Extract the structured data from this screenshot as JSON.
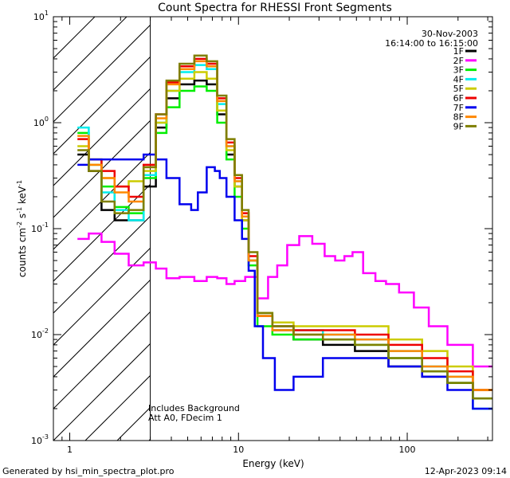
{
  "chart_data": {
    "type": "line",
    "title": "Count Spectra for RHESSI Front Segments",
    "xlabel": "Energy (keV)",
    "ylabel": "counts cm⁻² s⁻¹ keV⁻¹",
    "xscale": "log",
    "yscale": "log",
    "xlim": [
      0.8,
      320
    ],
    "ylim": [
      0.001,
      10
    ],
    "x_ticks": [
      {
        "value": 1,
        "label": "1"
      },
      {
        "value": 10,
        "label": "10"
      },
      {
        "value": 100,
        "label": "100"
      }
    ],
    "y_ticks": [
      {
        "value": 0.001,
        "base": "10",
        "exp": "-3"
      },
      {
        "value": 0.01,
        "base": "10",
        "exp": "-2"
      },
      {
        "value": 0.1,
        "base": "10",
        "exp": "-1"
      },
      {
        "value": 1,
        "base": "10",
        "exp": "0"
      },
      {
        "value": 10,
        "base": "10",
        "exp": "1"
      }
    ],
    "date": "30-Nov-2003",
    "time_range": "16:14:00 to 16:15:00",
    "hatched_region_max_kev": 3,
    "annotations": [
      "Includes Background",
      "Att A0, FDecim 1"
    ],
    "series": [
      {
        "name": "1F",
        "color": "#000000",
        "points": [
          [
            1.2,
            0.5
          ],
          [
            1.4,
            0.35
          ],
          [
            1.7,
            0.15
          ],
          [
            2.0,
            0.12
          ],
          [
            2.5,
            0.12
          ],
          [
            3,
            0.25
          ],
          [
            3.5,
            0.9
          ],
          [
            4,
            1.7
          ],
          [
            5,
            2.3
          ],
          [
            6,
            2.5
          ],
          [
            7,
            2.3
          ],
          [
            8,
            1.2
          ],
          [
            9,
            0.5
          ],
          [
            10,
            0.25
          ],
          [
            11,
            0.12
          ],
          [
            12,
            0.05
          ],
          [
            14,
            0.015
          ],
          [
            18,
            0.011
          ],
          [
            25,
            0.009
          ],
          [
            40,
            0.008
          ],
          [
            60,
            0.007
          ],
          [
            100,
            0.005
          ],
          [
            150,
            0.004
          ],
          [
            200,
            0.0035
          ],
          [
            300,
            0.003
          ]
        ]
      },
      {
        "name": "2F",
        "color": "#ff00ff",
        "points": [
          [
            1.2,
            0.08
          ],
          [
            1.4,
            0.09
          ],
          [
            1.7,
            0.075
          ],
          [
            2.0,
            0.058
          ],
          [
            2.5,
            0.045
          ],
          [
            3,
            0.048
          ],
          [
            3.5,
            0.042
          ],
          [
            4,
            0.034
          ],
          [
            5,
            0.035
          ],
          [
            6,
            0.032
          ],
          [
            7,
            0.035
          ],
          [
            8,
            0.034
          ],
          [
            9,
            0.03
          ],
          [
            10,
            0.032
          ],
          [
            12,
            0.035
          ],
          [
            14,
            0.022
          ],
          [
            16,
            0.035
          ],
          [
            18,
            0.045
          ],
          [
            21,
            0.07
          ],
          [
            25,
            0.085
          ],
          [
            30,
            0.072
          ],
          [
            35,
            0.055
          ],
          [
            40,
            0.05
          ],
          [
            45,
            0.055
          ],
          [
            50,
            0.06
          ],
          [
            60,
            0.038
          ],
          [
            70,
            0.032
          ],
          [
            80,
            0.03
          ],
          [
            100,
            0.025
          ],
          [
            120,
            0.018
          ],
          [
            150,
            0.012
          ],
          [
            200,
            0.008
          ],
          [
            300,
            0.005
          ]
        ]
      },
      {
        "name": "3F",
        "color": "#00ee00",
        "points": [
          [
            1.2,
            0.8
          ],
          [
            1.4,
            0.45
          ],
          [
            1.7,
            0.25
          ],
          [
            2.0,
            0.16
          ],
          [
            2.5,
            0.14
          ],
          [
            3,
            0.3
          ],
          [
            3.5,
            0.8
          ],
          [
            4,
            1.4
          ],
          [
            5,
            2.0
          ],
          [
            6,
            2.2
          ],
          [
            7,
            2.0
          ],
          [
            8,
            1.0
          ],
          [
            9,
            0.45
          ],
          [
            10,
            0.2
          ],
          [
            11,
            0.1
          ],
          [
            12,
            0.045
          ],
          [
            14,
            0.012
          ],
          [
            18,
            0.01
          ],
          [
            25,
            0.009
          ],
          [
            40,
            0.009
          ],
          [
            60,
            0.008
          ],
          [
            100,
            0.006
          ],
          [
            150,
            0.0045
          ],
          [
            200,
            0.0035
          ],
          [
            300,
            0.0025
          ]
        ]
      },
      {
        "name": "4F",
        "color": "#00eeee",
        "points": [
          [
            1.2,
            0.9
          ],
          [
            1.4,
            0.4
          ],
          [
            1.7,
            0.22
          ],
          [
            2.0,
            0.15
          ],
          [
            2.5,
            0.12
          ],
          [
            3,
            0.32
          ],
          [
            3.5,
            1.0
          ],
          [
            4,
            2.0
          ],
          [
            5,
            3.0
          ],
          [
            6,
            3.5
          ],
          [
            7,
            3.2
          ],
          [
            8,
            1.5
          ],
          [
            9,
            0.6
          ],
          [
            10,
            0.28
          ],
          [
            11,
            0.13
          ],
          [
            12,
            0.05
          ],
          [
            14,
            0.016
          ],
          [
            18,
            0.012
          ],
          [
            25,
            0.011
          ],
          [
            40,
            0.01
          ],
          [
            60,
            0.009
          ],
          [
            100,
            0.007
          ],
          [
            150,
            0.005
          ],
          [
            200,
            0.004
          ],
          [
            300,
            0.002
          ]
        ]
      },
      {
        "name": "5F",
        "color": "#cccc00",
        "points": [
          [
            1.2,
            0.6
          ],
          [
            1.4,
            0.4
          ],
          [
            1.7,
            0.3
          ],
          [
            2.0,
            0.25
          ],
          [
            2.5,
            0.28
          ],
          [
            3,
            0.35
          ],
          [
            3.5,
            1.0
          ],
          [
            4,
            2.0
          ],
          [
            5,
            2.6
          ],
          [
            6,
            3.0
          ],
          [
            7,
            2.6
          ],
          [
            8,
            1.3
          ],
          [
            9,
            0.55
          ],
          [
            10,
            0.25
          ],
          [
            11,
            0.12
          ],
          [
            12,
            0.05
          ],
          [
            14,
            0.016
          ],
          [
            18,
            0.013
          ],
          [
            25,
            0.012
          ],
          [
            40,
            0.012
          ],
          [
            60,
            0.012
          ],
          [
            100,
            0.009
          ],
          [
            150,
            0.007
          ],
          [
            200,
            0.005
          ],
          [
            300,
            0.003
          ]
        ]
      },
      {
        "name": "6F",
        "color": "#ee0000",
        "points": [
          [
            1.2,
            0.7
          ],
          [
            1.4,
            0.45
          ],
          [
            1.7,
            0.35
          ],
          [
            2.0,
            0.25
          ],
          [
            2.5,
            0.2
          ],
          [
            3,
            0.4
          ],
          [
            3.5,
            1.2
          ],
          [
            4,
            2.4
          ],
          [
            5,
            3.4
          ],
          [
            6,
            4.0
          ],
          [
            7,
            3.6
          ],
          [
            8,
            1.7
          ],
          [
            9,
            0.65
          ],
          [
            10,
            0.3
          ],
          [
            11,
            0.14
          ],
          [
            12,
            0.055
          ],
          [
            14,
            0.015
          ],
          [
            18,
            0.012
          ],
          [
            25,
            0.011
          ],
          [
            40,
            0.011
          ],
          [
            60,
            0.01
          ],
          [
            100,
            0.008
          ],
          [
            150,
            0.006
          ],
          [
            200,
            0.0045
          ],
          [
            300,
            0.003
          ]
        ]
      },
      {
        "name": "7F",
        "color": "#0000ee",
        "points": [
          [
            1.2,
            0.4
          ],
          [
            1.4,
            0.45
          ],
          [
            1.7,
            0.45
          ],
          [
            2.0,
            0.45
          ],
          [
            2.5,
            0.45
          ],
          [
            3,
            0.5
          ],
          [
            3.5,
            0.45
          ],
          [
            4,
            0.3
          ],
          [
            5,
            0.17
          ],
          [
            5.5,
            0.15
          ],
          [
            6,
            0.22
          ],
          [
            7,
            0.38
          ],
          [
            7.5,
            0.35
          ],
          [
            8,
            0.3
          ],
          [
            9,
            0.2
          ],
          [
            10,
            0.12
          ],
          [
            11,
            0.08
          ],
          [
            12,
            0.04
          ],
          [
            13,
            0.012
          ],
          [
            15,
            0.006
          ],
          [
            18,
            0.003
          ],
          [
            25,
            0.004
          ],
          [
            40,
            0.006
          ],
          [
            60,
            0.006
          ],
          [
            100,
            0.005
          ],
          [
            150,
            0.004
          ],
          [
            200,
            0.003
          ],
          [
            300,
            0.002
          ]
        ]
      },
      {
        "name": "8F",
        "color": "#ff8800",
        "points": [
          [
            1.2,
            0.75
          ],
          [
            1.4,
            0.4
          ],
          [
            1.7,
            0.3
          ],
          [
            2.0,
            0.22
          ],
          [
            2.5,
            0.18
          ],
          [
            3,
            0.38
          ],
          [
            3.5,
            1.1
          ],
          [
            4,
            2.3
          ],
          [
            5,
            3.2
          ],
          [
            6,
            3.8
          ],
          [
            7,
            3.4
          ],
          [
            8,
            1.6
          ],
          [
            9,
            0.6
          ],
          [
            10,
            0.28
          ],
          [
            11,
            0.13
          ],
          [
            12,
            0.05
          ],
          [
            14,
            0.015
          ],
          [
            18,
            0.011
          ],
          [
            25,
            0.01
          ],
          [
            40,
            0.01
          ],
          [
            60,
            0.009
          ],
          [
            100,
            0.007
          ],
          [
            150,
            0.005
          ],
          [
            200,
            0.004
          ],
          [
            300,
            0.003
          ]
        ]
      },
      {
        "name": "9F",
        "color": "#7f7f00",
        "points": [
          [
            1.2,
            0.55
          ],
          [
            1.4,
            0.35
          ],
          [
            1.7,
            0.18
          ],
          [
            2.0,
            0.14
          ],
          [
            2.5,
            0.15
          ],
          [
            3,
            0.38
          ],
          [
            3.5,
            1.2
          ],
          [
            4,
            2.5
          ],
          [
            5,
            3.6
          ],
          [
            6,
            4.3
          ],
          [
            7,
            3.8
          ],
          [
            8,
            1.8
          ],
          [
            9,
            0.7
          ],
          [
            10,
            0.32
          ],
          [
            11,
            0.15
          ],
          [
            12,
            0.06
          ],
          [
            14,
            0.016
          ],
          [
            18,
            0.012
          ],
          [
            25,
            0.01
          ],
          [
            40,
            0.009
          ],
          [
            60,
            0.008
          ],
          [
            100,
            0.006
          ],
          [
            150,
            0.0045
          ],
          [
            200,
            0.0035
          ],
          [
            300,
            0.0025
          ]
        ]
      }
    ]
  },
  "footer": {
    "generated_by": "Generated by hsi_min_spectra_plot.pro",
    "timestamp": "12-Apr-2023 09:14"
  }
}
